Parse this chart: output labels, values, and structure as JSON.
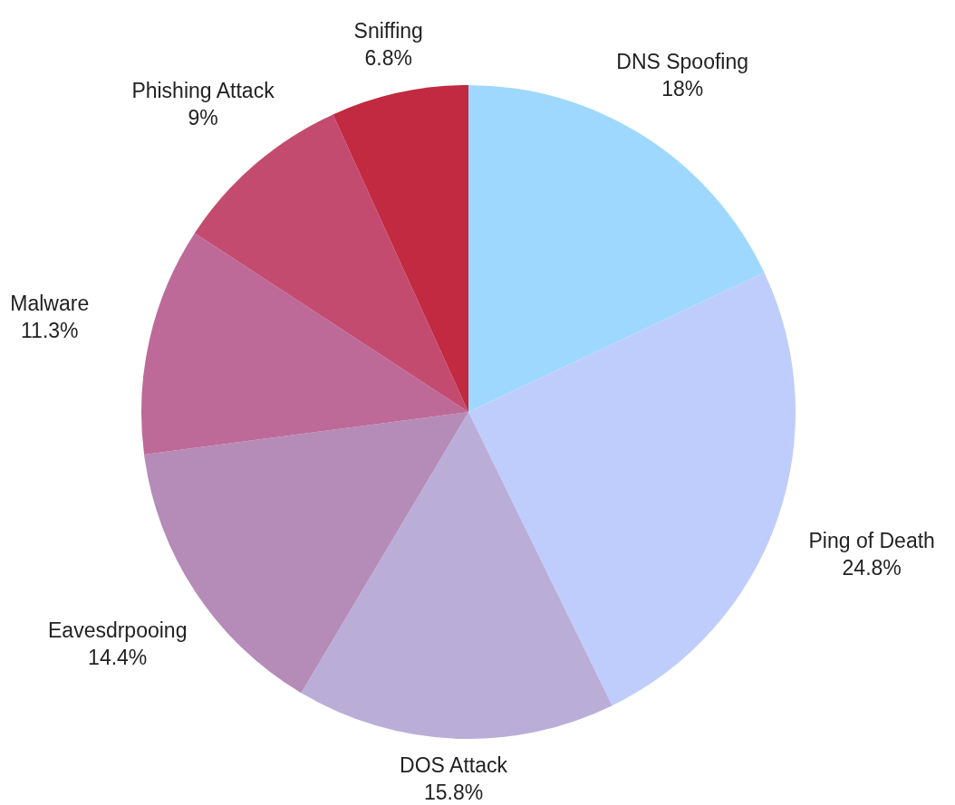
{
  "chart_data": {
    "type": "pie",
    "categories": [
      "DNS Spoofing",
      "Ping of Death",
      "DOS Attack",
      "Eavesdrpooing",
      "Malware",
      "Phishing Attack",
      "Sniffing"
    ],
    "values": [
      18,
      24.8,
      15.8,
      14.4,
      11.3,
      9,
      6.8
    ],
    "value_labels": [
      "18%",
      "24.8%",
      "15.8%",
      "14.4%",
      "11.3%",
      "9%",
      "6.8%"
    ],
    "colors": [
      "#9fd8fe",
      "#bfcdfd",
      "#baaed9",
      "#b58bb8",
      "#bd6a99",
      "#c44b70",
      "#c12a40"
    ],
    "legend": false
  }
}
